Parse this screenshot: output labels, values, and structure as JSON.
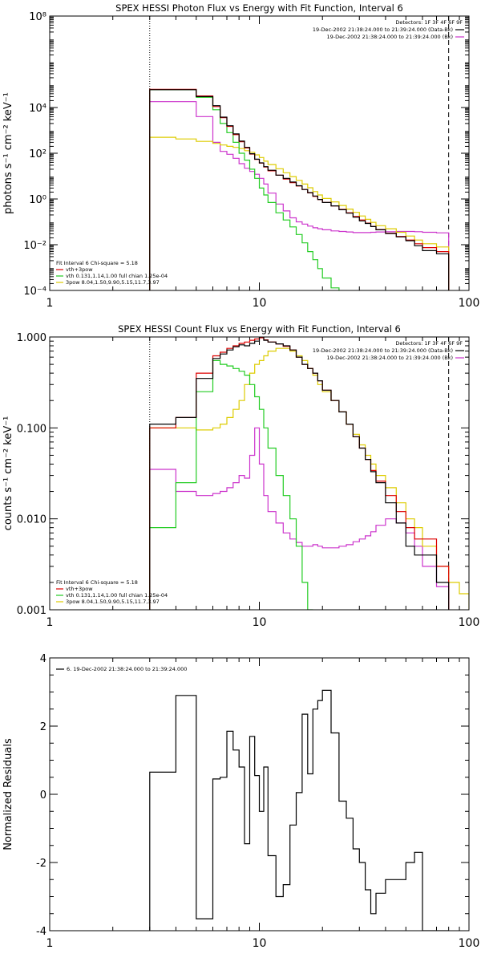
{
  "chart_data": [
    {
      "type": "line",
      "title": "SPEX HESSI Photon Flux vs Energy with Fit Function, Interval 6",
      "ylabel": "photons s⁻¹ cm⁻² keV⁻¹",
      "xlabel": "",
      "xscale": "log",
      "yscale": "log",
      "xlim": [
        1,
        100
      ],
      "ylim": [
        0.0001,
        100000000
      ],
      "xticks": [
        1,
        10,
        100
      ],
      "xtick_labels": [
        "1",
        "10",
        "100"
      ],
      "yticks": [
        0.0001,
        0.01,
        1,
        100,
        10000,
        100000000
      ],
      "ytick_labels": [
        "10⁻⁴",
        "10⁻²",
        "10⁰",
        "10²",
        "10⁴",
        "10⁸"
      ],
      "legend_header": "Detectors: 1F 3F 4F 6F 9F",
      "legend": [
        {
          "label": "19-Dec-2002 21:38:24.000 to 21:39:24.000 (Data-Bk)",
          "color": "#000000"
        },
        {
          "label": "19-Dec-2002 21:38:24.000 to 21:39:24.000 (Bk)",
          "color": "#cc33cc"
        }
      ],
      "fit_legend": [
        {
          "label": "Fit Interval 6   Chi-square = 5.18",
          "color": "#000000"
        },
        {
          "label": "vth+3pow",
          "color": "#dd0000"
        },
        {
          "label": "vth 0.131,1.14,1.00  full chian 1.25e-04",
          "color": "#22cc22"
        },
        {
          "label": "3pow 8.04,1.50,9.90,5.15,11.7,3.97",
          "color": "#ddcc00"
        }
      ],
      "vlines": [
        {
          "x": 3,
          "style": "dotted"
        },
        {
          "x": 80,
          "style": "dashed"
        }
      ],
      "edges": [
        3,
        4,
        5,
        6,
        6.5,
        7,
        7.5,
        8,
        8.5,
        9,
        9.5,
        10,
        10.5,
        11,
        12,
        13,
        14,
        15,
        16,
        17,
        18,
        19,
        20,
        22,
        24,
        26,
        28,
        30,
        32,
        34,
        36,
        40,
        45,
        50,
        55,
        60,
        70,
        80
      ],
      "series": [
        {
          "name": "Data-Bk",
          "color": "#000000",
          "values": [
            60000,
            60000,
            30000,
            12000,
            3800,
            1600,
            700,
            340,
            180,
            95,
            55,
            38,
            26,
            18,
            11,
            8,
            5.5,
            3.8,
            2.6,
            1.9,
            1.35,
            0.95,
            0.7,
            0.5,
            0.34,
            0.24,
            0.16,
            0.11,
            0.085,
            0.062,
            0.045,
            0.031,
            0.022,
            0.015,
            0.009,
            0.0055,
            0.004
          ]
        },
        {
          "name": "vth+3pow",
          "color": "#dd0000",
          "values": [
            62000,
            62000,
            32000,
            11000,
            3600,
            1500,
            650,
            320,
            170,
            92,
            54,
            37,
            25,
            17,
            11,
            7.5,
            5.2,
            3.7,
            2.6,
            1.85,
            1.3,
            0.95,
            0.7,
            0.5,
            0.35,
            0.25,
            0.17,
            0.12,
            0.088,
            0.063,
            0.046,
            0.032,
            0.023,
            0.016,
            0.011,
            0.0075,
            0.005
          ]
        },
        {
          "name": "vth",
          "color": "#22cc22",
          "values": [
            60000,
            60000,
            28000,
            8000,
            2000,
            800,
            300,
            100,
            50,
            20,
            8,
            3,
            1.5,
            0.7,
            0.25,
            0.12,
            0.06,
            0.028,
            0.012,
            0.005,
            0.0022,
            0.0009,
            0.00035,
            0.00013
          ]
        },
        {
          "name": "3pow",
          "color": "#ddcc00",
          "values": [
            500,
            420,
            330,
            270,
            230,
            200,
            180,
            160,
            130,
            110,
            85,
            65,
            45,
            32,
            21,
            14,
            9.5,
            6.5,
            4.5,
            3.1,
            2.1,
            1.5,
            1.05,
            0.75,
            0.52,
            0.36,
            0.26,
            0.18,
            0.13,
            0.095,
            0.068,
            0.05,
            0.035,
            0.024,
            0.016,
            0.011,
            0.008
          ]
        },
        {
          "name": "Bk",
          "color": "#cc33cc",
          "values": [
            18000,
            18000,
            4000,
            300,
            120,
            90,
            60,
            35,
            22,
            16,
            12,
            8,
            4.5,
            1.8,
            0.6,
            0.3,
            0.15,
            0.1,
            0.08,
            0.065,
            0.055,
            0.05,
            0.045,
            0.04,
            0.038,
            0.036,
            0.034,
            0.034,
            0.034,
            0.035,
            0.036,
            0.037,
            0.038,
            0.038,
            0.037,
            0.035,
            0.033
          ]
        }
      ]
    },
    {
      "type": "line",
      "title": "SPEX HESSI Count Flux vs Energy with Fit Function, Interval 6",
      "ylabel": "counts s⁻¹ cm⁻² keV⁻¹",
      "xlabel": "",
      "xscale": "log",
      "yscale": "log",
      "xlim": [
        1,
        100
      ],
      "ylim": [
        0.001,
        1
      ],
      "xticks": [
        1,
        10,
        100
      ],
      "xtick_labels": [
        "1",
        "10",
        "100"
      ],
      "yticks": [
        0.001,
        0.01,
        0.1,
        1
      ],
      "ytick_labels": [
        "0.001",
        "0.010",
        "0.100",
        "1.000"
      ],
      "legend_header": "Detectors: 1F 3F 4F 6F 9F",
      "legend": [
        {
          "label": "19-Dec-2002 21:38:24.000 to 21:39:24.000 (Data-Bk)",
          "color": "#000000"
        },
        {
          "label": "19-Dec-2002 21:38:24.000 to 21:39:24.000 (Bk)",
          "color": "#cc33cc"
        }
      ],
      "fit_legend": [
        {
          "label": "Fit Interval 6   Chi-square = 5.18",
          "color": "#000000"
        },
        {
          "label": "vth+3pow",
          "color": "#dd0000"
        },
        {
          "label": "vth 0.131,1.14,1.00  full chian 1.25e-04",
          "color": "#22cc22"
        },
        {
          "label": "3pow 8.04,1.50,9.90,5.15,11.7,3.97",
          "color": "#ddcc00"
        }
      ],
      "vlines": [
        {
          "x": 3,
          "style": "dotted"
        },
        {
          "x": 80,
          "style": "dashed"
        }
      ],
      "edges": [
        3,
        4,
        5,
        6,
        6.5,
        7,
        7.5,
        8,
        8.5,
        9,
        9.5,
        10,
        10.5,
        11,
        12,
        13,
        14,
        15,
        16,
        17,
        18,
        19,
        20,
        22,
        24,
        26,
        28,
        30,
        32,
        34,
        36,
        40,
        45,
        50,
        55,
        60,
        70,
        80,
        90,
        100
      ],
      "series": [
        {
          "name": "Data-Bk",
          "color": "#000000",
          "values": [
            0.11,
            0.13,
            0.35,
            0.58,
            0.65,
            0.72,
            0.78,
            0.82,
            0.8,
            0.85,
            0.9,
            1.0,
            0.92,
            0.88,
            0.84,
            0.8,
            0.72,
            0.6,
            0.5,
            0.45,
            0.4,
            0.33,
            0.26,
            0.2,
            0.15,
            0.11,
            0.08,
            0.06,
            0.045,
            0.033,
            0.025,
            0.015,
            0.009,
            0.005,
            0.004,
            0.004,
            0.002
          ]
        },
        {
          "name": "vth+3pow",
          "color": "#dd0000",
          "values": [
            0.1,
            0.13,
            0.4,
            0.62,
            0.68,
            0.75,
            0.8,
            0.85,
            0.88,
            0.92,
            0.95,
            0.98,
            0.93,
            0.88,
            0.84,
            0.79,
            0.72,
            0.6,
            0.5,
            0.45,
            0.4,
            0.33,
            0.26,
            0.2,
            0.15,
            0.11,
            0.08,
            0.06,
            0.045,
            0.034,
            0.026,
            0.018,
            0.012,
            0.008,
            0.006,
            0.006,
            0.003
          ]
        },
        {
          "name": "vth",
          "color": "#22cc22",
          "values": [
            0.008,
            0.025,
            0.25,
            0.55,
            0.5,
            0.48,
            0.45,
            0.42,
            0.38,
            0.3,
            0.22,
            0.16,
            0.1,
            0.06,
            0.03,
            0.018,
            0.01,
            0.005,
            0.002,
            0.0009
          ]
        },
        {
          "name": "3pow",
          "color": "#ddcc00",
          "values": [
            0.1,
            0.1,
            0.095,
            0.1,
            0.11,
            0.13,
            0.16,
            0.2,
            0.3,
            0.4,
            0.5,
            0.55,
            0.62,
            0.7,
            0.75,
            0.75,
            0.7,
            0.62,
            0.55,
            0.45,
            0.38,
            0.3,
            0.25,
            0.2,
            0.15,
            0.11,
            0.085,
            0.065,
            0.05,
            0.04,
            0.03,
            0.022,
            0.015,
            0.01,
            0.008,
            0.005,
            0.003,
            0.002,
            0.0015
          ]
        },
        {
          "name": "Bk",
          "color": "#cc33cc",
          "values": [
            0.035,
            0.02,
            0.018,
            0.019,
            0.02,
            0.022,
            0.025,
            0.03,
            0.028,
            0.05,
            0.1,
            0.04,
            0.018,
            0.012,
            0.009,
            0.007,
            0.006,
            0.0055,
            0.005,
            0.005,
            0.0052,
            0.005,
            0.0048,
            0.0048,
            0.005,
            0.0052,
            0.0056,
            0.006,
            0.0065,
            0.0072,
            0.0085,
            0.01,
            0.009,
            0.007,
            0.005,
            0.003,
            0.0018
          ]
        }
      ]
    },
    {
      "type": "line",
      "title": "",
      "ylabel": "Normalized Residuals",
      "xlabel": "",
      "xscale": "log",
      "yscale": "linear",
      "xlim": [
        1,
        100
      ],
      "ylim": [
        -4,
        4
      ],
      "xticks": [
        1,
        10,
        100
      ],
      "xtick_labels": [
        "1",
        "10",
        "100"
      ],
      "yticks": [
        -4,
        -2,
        0,
        2,
        4
      ],
      "ytick_labels": [
        "-4",
        "-2",
        "0",
        "2",
        "4"
      ],
      "legend": [
        {
          "label": "6. 19-Dec-2002 21:38:24.000 to 21:39:24.000",
          "color": "#000000"
        }
      ],
      "edges": [
        3,
        4,
        5,
        6,
        6.5,
        7,
        7.5,
        8,
        8.5,
        9,
        9.5,
        10,
        10.5,
        11,
        12,
        13,
        14,
        15,
        16,
        17,
        18,
        19,
        20,
        22,
        24,
        26,
        28,
        30,
        32,
        34,
        36,
        40,
        45,
        50,
        55,
        60,
        70,
        80
      ],
      "series": [
        {
          "name": "",
          "color": "#000000",
          "values": [
            0.65,
            2.9,
            -3.65,
            0.45,
            0.5,
            1.85,
            1.3,
            0.8,
            -1.45,
            1.7,
            0.55,
            -0.5,
            0.8,
            -1.8,
            -3.0,
            -2.65,
            -0.9,
            0.05,
            2.35,
            0.6,
            2.5,
            2.75,
            3.05,
            1.8,
            -0.2,
            -0.7,
            -1.6,
            -2.0,
            -2.8,
            -3.5,
            -2.9,
            -2.5,
            -2.5,
            -2.0,
            -1.7,
            -4.0,
            -4.0
          ]
        }
      ]
    }
  ]
}
